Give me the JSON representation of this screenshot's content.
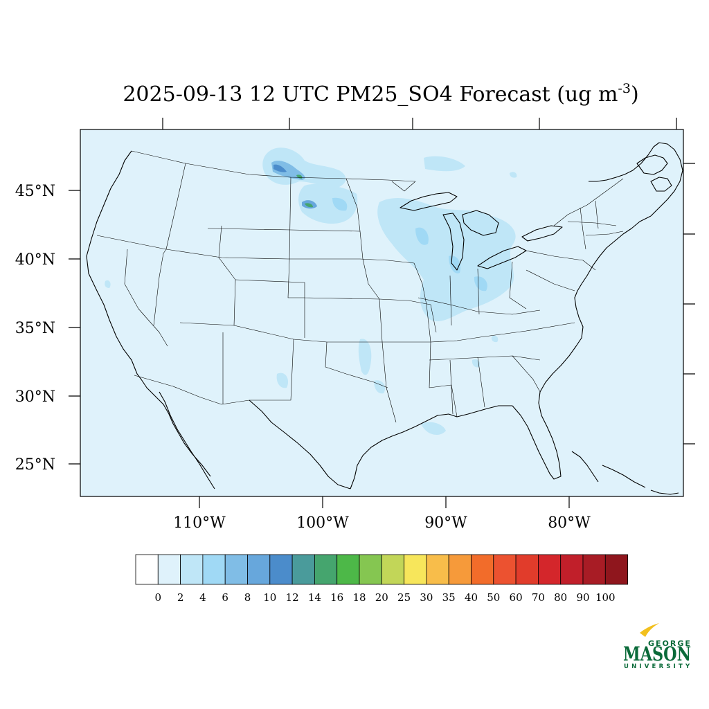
{
  "title": {
    "main": "2025-09-13 12 UTC PM25_SO4 Forecast (ug m",
    "superscript": "-3",
    "close": ")"
  },
  "map": {
    "background_color": "#dff2fb",
    "lat_ticks": [
      "45°N",
      "40°N",
      "35°N",
      "30°N",
      "25°N"
    ],
    "lon_ticks": [
      "110°W",
      "100°W",
      "90°W",
      "80°W"
    ]
  },
  "colorbar": {
    "colors": [
      "#ffffff",
      "#dff2fb",
      "#bfe6f7",
      "#a0d9f5",
      "#80bde6",
      "#67a7dc",
      "#4b8ccb",
      "#4a9b9b",
      "#45a56e",
      "#4db848",
      "#85c651",
      "#c2d658",
      "#f7e65b",
      "#f8bd4a",
      "#f69a3a",
      "#f26c2a",
      "#ec5230",
      "#e13c2b",
      "#d4262b",
      "#c11f2a",
      "#a81c25",
      "#8f161d"
    ],
    "labels": [
      "0",
      "2",
      "4",
      "6",
      "8",
      "10",
      "12",
      "14",
      "16",
      "18",
      "20",
      "25",
      "30",
      "35",
      "40",
      "50",
      "60",
      "70",
      "80",
      "90",
      "100"
    ]
  },
  "logo": {
    "top": "GEORGE",
    "main": "MASON",
    "bottom": "UNIVERSITY",
    "color": "#0b6b3a",
    "accent": "#f2c01e"
  }
}
